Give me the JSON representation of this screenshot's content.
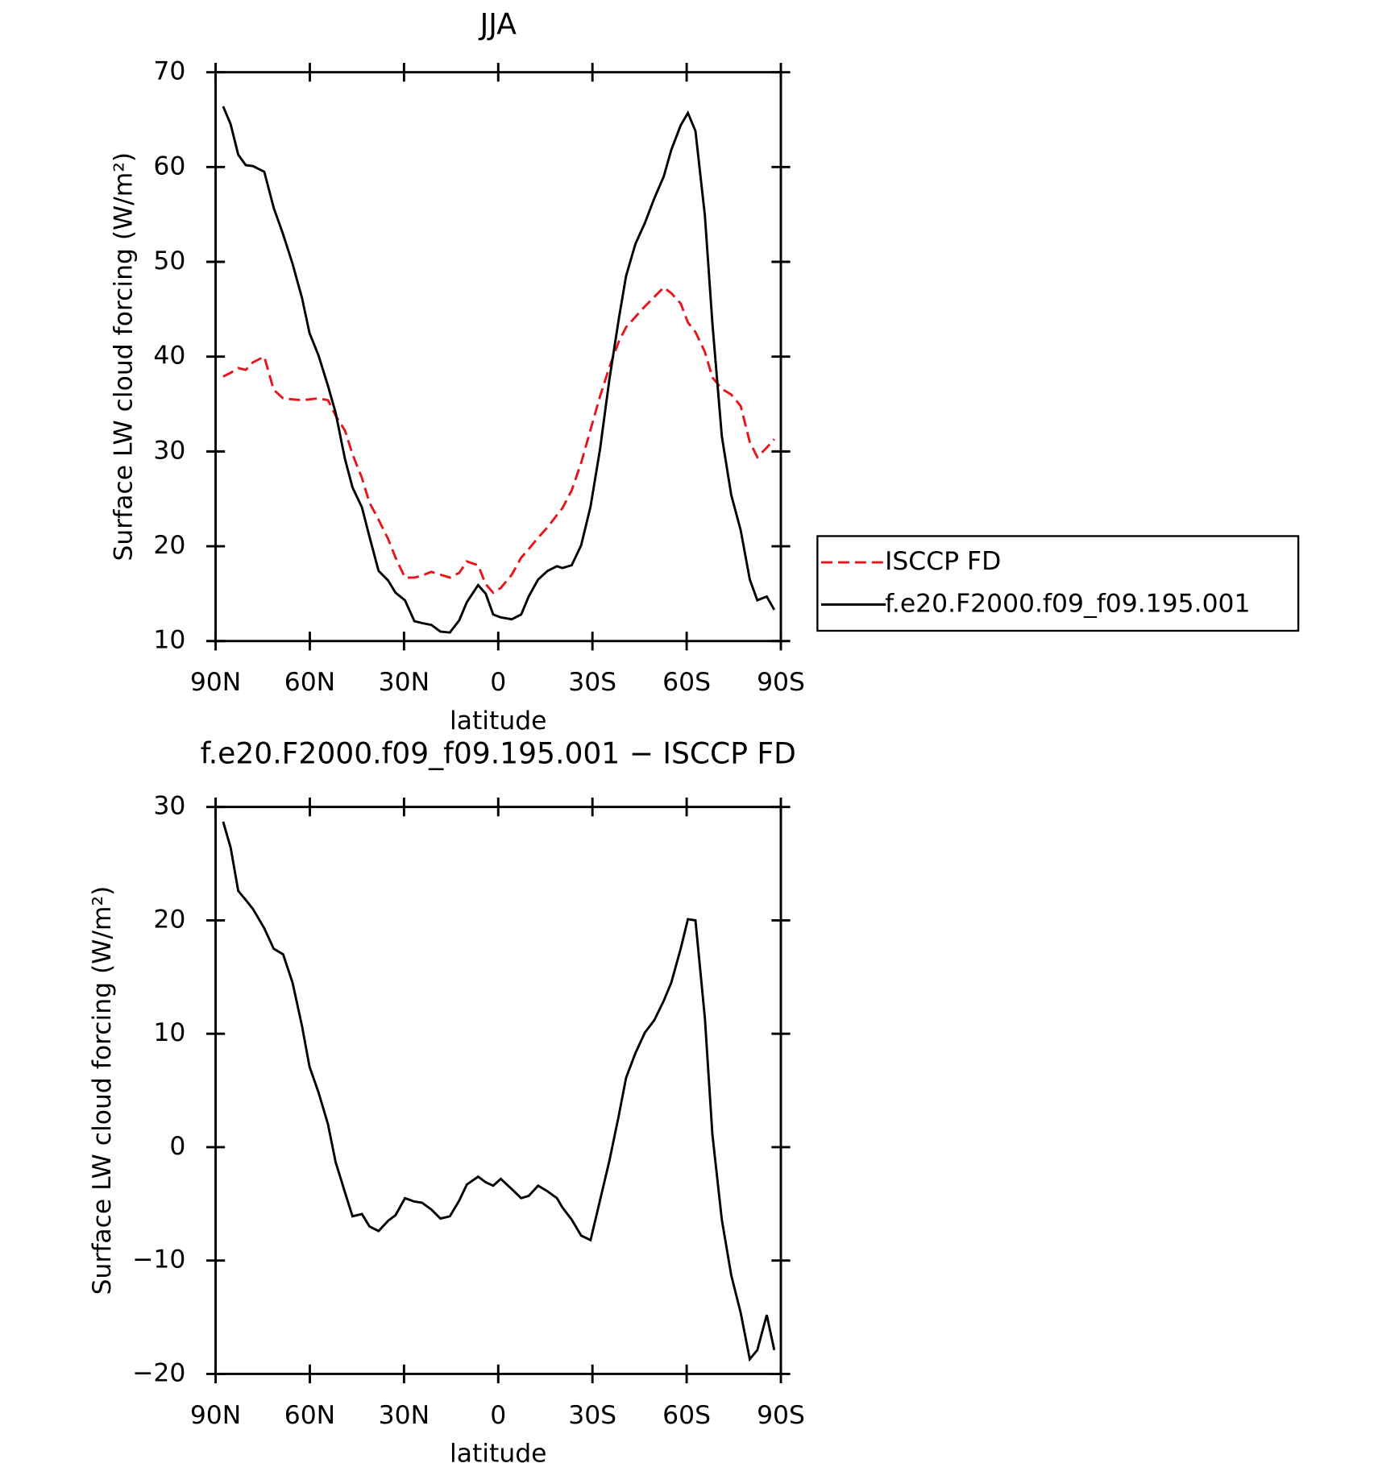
{
  "chart_data": [
    {
      "type": "line",
      "title": "JJA",
      "xlabel": "latitude",
      "ylabel": "Surface LW cloud forcing (W/m²)",
      "x": [
        87.6,
        85.2,
        82.8,
        80.4,
        78.1,
        74.5,
        71.5,
        68.5,
        65.5,
        62.5,
        60.1,
        57.2,
        54.2,
        51.8,
        48.8,
        46.4,
        43.4,
        41.0,
        38.1,
        35.1,
        32.7,
        29.7,
        26.7,
        24.3,
        21.3,
        18.4,
        15.4,
        12.4,
        10.0,
        6.4,
        4.0,
        1.6,
        -0.8,
        -4.3,
        -7.3,
        -9.7,
        -12.7,
        -15.7,
        -18.7,
        -20.4,
        -23.4,
        -26.4,
        -29.4,
        -32.4,
        -35.4,
        -38.4,
        -40.7,
        -43.7,
        -46.7,
        -49.7,
        -52.7,
        -55.1,
        -58.1,
        -60.4,
        -62.8,
        -65.8,
        -68.2,
        -71.2,
        -74.2,
        -77.2,
        -80.1,
        -82.5,
        -85.5,
        -87.9
      ],
      "series": [
        {
          "name": "ISCCP FD",
          "color": "#e8141a",
          "dash": true,
          "values": [
            37.9,
            38.3,
            38.8,
            38.6,
            39.4,
            40.0,
            36.5,
            35.6,
            35.5,
            35.4,
            35.5,
            35.6,
            35.4,
            33.8,
            32.2,
            29.7,
            27.2,
            24.6,
            22.8,
            20.8,
            18.8,
            16.7,
            16.7,
            16.9,
            17.3,
            17.0,
            16.7,
            17.2,
            18.4,
            18.0,
            16.0,
            15.1,
            15.6,
            17.0,
            18.8,
            19.7,
            20.9,
            22.0,
            23.3,
            24.0,
            25.9,
            28.8,
            32.3,
            35.8,
            38.9,
            41.6,
            43.1,
            44.2,
            45.3,
            46.3,
            47.3,
            46.7,
            45.6,
            43.6,
            42.6,
            40.5,
            37.8,
            36.6,
            36.0,
            34.8,
            31.0,
            29.4,
            30.4,
            31.3
          ]
        },
        {
          "name": "f.e20.F2000.f09_f09.195.001",
          "color": "#000000",
          "dash": false,
          "values": [
            66.4,
            64.5,
            61.3,
            60.2,
            60.1,
            59.5,
            55.7,
            52.9,
            49.8,
            46.2,
            42.5,
            40.1,
            36.9,
            34.1,
            29.2,
            26.2,
            24.1,
            21.0,
            17.4,
            16.4,
            15.1,
            14.3,
            12.1,
            11.9,
            11.7,
            11.0,
            10.9,
            12.2,
            14.1,
            15.9,
            15.0,
            12.8,
            12.5,
            12.3,
            12.8,
            14.7,
            16.5,
            17.4,
            17.9,
            17.7,
            18.0,
            20.1,
            24.2,
            30.2,
            37.6,
            44.0,
            48.5,
            51.9,
            54.1,
            56.7,
            59.0,
            61.8,
            64.4,
            65.7,
            63.8,
            54.9,
            43.5,
            31.6,
            25.4,
            21.7,
            16.5,
            14.3,
            14.7,
            13.3
          ]
        }
      ],
      "xlim": [
        90,
        -90
      ],
      "xticks": [
        {
          "value": 90,
          "label": "90N"
        },
        {
          "value": 60,
          "label": "60N"
        },
        {
          "value": 30,
          "label": "30N"
        },
        0,
        {
          "value": -30,
          "label": "30S"
        },
        {
          "value": -60,
          "label": "60S"
        },
        {
          "value": -90,
          "label": "90S"
        }
      ],
      "ylim": [
        10,
        70
      ],
      "yticks": [
        10,
        20,
        30,
        40,
        50,
        60,
        70
      ],
      "legend": "right"
    },
    {
      "type": "line",
      "title": "f.e20.F2000.f09_f09.195.001 − ISCCP FD",
      "xlabel": "latitude",
      "ylabel": "Surface LW cloud forcing (W/m²)",
      "x": [
        87.6,
        85.2,
        82.8,
        80.4,
        78.1,
        74.5,
        71.5,
        68.5,
        65.5,
        62.5,
        60.1,
        57.2,
        54.2,
        51.8,
        48.8,
        46.4,
        43.4,
        41.0,
        38.1,
        35.1,
        32.7,
        29.7,
        26.7,
        24.3,
        21.3,
        18.4,
        15.4,
        12.4,
        10.0,
        6.4,
        4.0,
        1.6,
        -0.8,
        -4.3,
        -7.3,
        -9.7,
        -12.7,
        -15.7,
        -18.7,
        -20.4,
        -23.4,
        -26.4,
        -29.4,
        -32.4,
        -35.4,
        -38.4,
        -40.7,
        -43.7,
        -46.7,
        -49.7,
        -52.7,
        -55.1,
        -58.1,
        -60.4,
        -62.8,
        -65.8,
        -68.2,
        -71.2,
        -74.2,
        -77.2,
        -80.1,
        -82.5,
        -85.5,
        -87.9
      ],
      "series": [
        {
          "color": "#000000",
          "dash": false,
          "values": [
            28.7,
            26.4,
            22.6,
            21.8,
            21.0,
            19.3,
            17.5,
            17.0,
            14.5,
            10.7,
            7.1,
            4.8,
            2.0,
            -1.3,
            -4.0,
            -6.1,
            -5.9,
            -7.0,
            -7.4,
            -6.5,
            -6.0,
            -4.5,
            -4.8,
            -4.9,
            -5.5,
            -6.3,
            -6.1,
            -4.7,
            -3.3,
            -2.6,
            -3.1,
            -3.4,
            -2.8,
            -3.7,
            -4.5,
            -4.3,
            -3.4,
            -3.9,
            -4.5,
            -5.3,
            -6.4,
            -7.8,
            -8.2,
            -4.7,
            -1.2,
            2.8,
            6.1,
            8.3,
            10.1,
            11.2,
            12.9,
            14.5,
            17.5,
            20.1,
            20.0,
            11.4,
            1.1,
            -6.4,
            -11.3,
            -14.6,
            -18.7,
            -17.9,
            -14.8,
            -17.9
          ]
        }
      ],
      "xlim": [
        90,
        -90
      ],
      "xticks": [
        {
          "value": 90,
          "label": "90N"
        },
        {
          "value": 60,
          "label": "60N"
        },
        {
          "value": 30,
          "label": "30N"
        },
        0,
        {
          "value": -30,
          "label": "30S"
        },
        {
          "value": -60,
          "label": "60S"
        },
        {
          "value": -90,
          "label": "90S"
        }
      ],
      "ylim": [
        -20,
        30
      ],
      "yticks": [
        {
          "value": -20,
          "label": "−20"
        },
        {
          "value": -10,
          "label": "−10"
        },
        0,
        10,
        20,
        30
      ]
    }
  ]
}
